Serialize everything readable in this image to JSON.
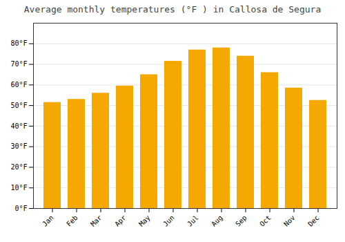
{
  "chart_data": {
    "type": "bar",
    "title": "Average monthly temperatures (°F ) in Callosa de Segura",
    "categories": [
      "Jan",
      "Feb",
      "Mar",
      "Apr",
      "May",
      "Jun",
      "Jul",
      "Aug",
      "Sep",
      "Oct",
      "Nov",
      "Dec"
    ],
    "values": [
      51.5,
      53.0,
      56.0,
      59.5,
      65.0,
      71.5,
      77.0,
      78.0,
      74.0,
      66.0,
      58.5,
      52.5
    ],
    "color": "#F5A800",
    "ylim": [
      0,
      90
    ],
    "yticks": [
      {
        "value": 0,
        "label": "0°F"
      },
      {
        "value": 10,
        "label": "10°F"
      },
      {
        "value": 20,
        "label": "20°F"
      },
      {
        "value": 30,
        "label": "30°F"
      },
      {
        "value": 40,
        "label": "40°F"
      },
      {
        "value": 50,
        "label": "50°F"
      },
      {
        "value": 60,
        "label": "60°F"
      },
      {
        "value": 70,
        "label": "70°F"
      },
      {
        "value": 80,
        "label": "80°F"
      }
    ],
    "grid": true
  }
}
